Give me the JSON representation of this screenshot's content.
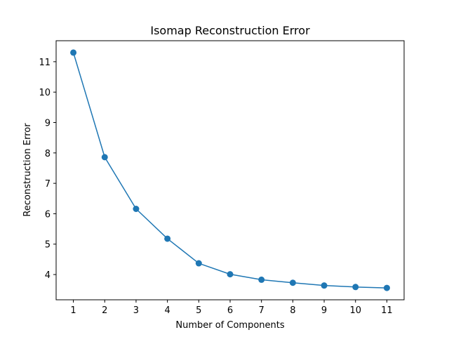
{
  "chart_data": {
    "type": "line",
    "title": "Isomap Reconstruction Error",
    "xlabel": "Number of Components",
    "ylabel": "Reconstruction Error",
    "x": [
      1,
      2,
      3,
      4,
      5,
      6,
      7,
      8,
      9,
      10,
      11
    ],
    "series": [
      {
        "name": "Reconstruction Error",
        "values": [
          11.3,
          7.86,
          6.16,
          5.18,
          4.37,
          4.01,
          3.83,
          3.73,
          3.64,
          3.59,
          3.56
        ],
        "color": "#1f77b4",
        "marker": "circle"
      }
    ],
    "xticks": [
      "1",
      "2",
      "3",
      "4",
      "5",
      "6",
      "7",
      "8",
      "9",
      "10",
      "11"
    ],
    "yticks": [
      "4",
      "5",
      "6",
      "7",
      "8",
      "9",
      "10",
      "11"
    ],
    "xlim": [
      0.45,
      11.55
    ],
    "ylim": [
      3.17,
      11.69
    ],
    "grid": false,
    "legend": "none"
  }
}
